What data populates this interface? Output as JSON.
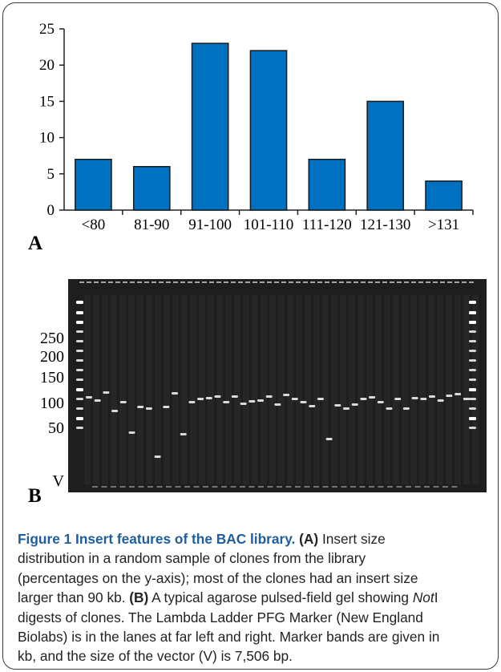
{
  "panel_a_label": "A",
  "panel_b_label": "B",
  "chart_data": {
    "type": "bar",
    "categories": [
      "<80",
      "81-90",
      "91-100",
      "101-110",
      "111-120",
      "121-130",
      ">131"
    ],
    "values": [
      7,
      6,
      23,
      22,
      7,
      15,
      4
    ],
    "yticks": [
      0,
      5,
      10,
      15,
      20,
      25
    ],
    "ylim": [
      0,
      25
    ],
    "grid": false,
    "bar_color": "#0070c0",
    "xlabel": "",
    "ylabel": ""
  },
  "gel": {
    "marker_labels": [
      "250",
      "200",
      "150",
      "100",
      "50"
    ],
    "vector_label": "V"
  },
  "caption": {
    "title": "Figure 1 Insert features of the BAC library.",
    "a_tag": "(A)",
    "b_tag": "(B)",
    "line1_tail": " Insert size",
    "line2": "distribution in a random sample of clones from the library",
    "line3": "(percentages on the y-axis); most of the clones had an insert size",
    "line4_pre": "larger than 90 kb. ",
    "line4_post": " A typical agarose pulsed-field gel showing ",
    "enzyme": "Not",
    "enzyme_suffix": "I",
    "line5": "digests of clones. The Lambda Ladder PFG Marker (New England",
    "line6": "Biolabs) is in the lanes at far left and right. Marker bands are given in",
    "line7": "kb, and the size of the vector (V) is 7,506 bp."
  }
}
